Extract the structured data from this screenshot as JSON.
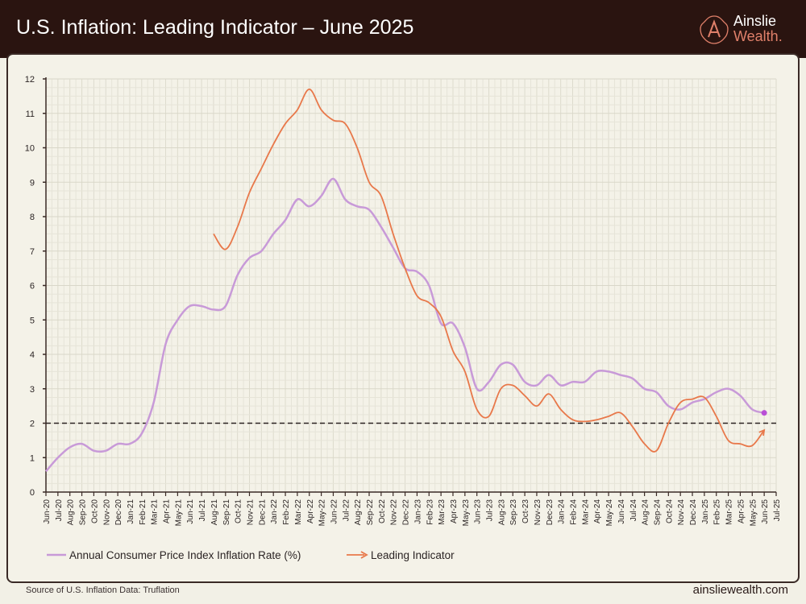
{
  "header": {
    "title": "U.S. Inflation: Leading Indicator – June 2025"
  },
  "logo": {
    "line1": "Ainslie",
    "line2": "Wealth."
  },
  "footer": {
    "source": "Source of U.S. Inflation Data: Truflation",
    "site": "ainsliewealth.com"
  },
  "colors": {
    "header_bg": "#2a1410",
    "cpi": "#c89ad8",
    "leading": "#e8784a",
    "target_line": "#2b2222",
    "endpoint_dot": "#b94fd6"
  },
  "chart_data": {
    "type": "line",
    "title": "",
    "xlabel": "",
    "ylabel": "",
    "ylim": [
      0,
      12
    ],
    "yticks": [
      0,
      1,
      2,
      3,
      4,
      5,
      6,
      7,
      8,
      9,
      10,
      11,
      12
    ],
    "grid": true,
    "legend": "bottom",
    "reference_line": {
      "y": 2,
      "style": "dashed"
    },
    "categories": [
      "Jun-20",
      "Jul-20",
      "Aug-20",
      "Sep-20",
      "Oct-20",
      "Nov-20",
      "Dec-20",
      "Jan-21",
      "Feb-21",
      "Mar-21",
      "Apr-21",
      "May-21",
      "Jun-21",
      "Jul-21",
      "Aug-21",
      "Sep-21",
      "Oct-21",
      "Nov-21",
      "Dec-21",
      "Jan-22",
      "Feb-22",
      "Mar-22",
      "Apr-22",
      "May-22",
      "Jun-22",
      "Jul-22",
      "Aug-22",
      "Sep-22",
      "Oct-22",
      "Nov-22",
      "Dec-22",
      "Jan-23",
      "Feb-23",
      "Mar-23",
      "Apr-23",
      "May-23",
      "Jun-23",
      "Jul-23",
      "Aug-23",
      "Sep-23",
      "Oct-23",
      "Nov-23",
      "Dec-23",
      "Jan-24",
      "Feb-24",
      "Mar-24",
      "Apr-24",
      "May-24",
      "Jun-24",
      "Jul-24",
      "Aug-24",
      "Sep-24",
      "Oct-24",
      "Nov-24",
      "Dec-24",
      "Jan-25",
      "Feb-25",
      "Mar-25",
      "Apr-25",
      "May-25",
      "Jun-25",
      "Jul-25"
    ],
    "series": [
      {
        "name": "Annual Consumer Price Index Inflation Rate (%)",
        "values": [
          0.6,
          1.0,
          1.3,
          1.4,
          1.2,
          1.2,
          1.4,
          1.4,
          1.7,
          2.6,
          4.3,
          5.0,
          5.4,
          5.4,
          5.3,
          5.4,
          6.3,
          6.8,
          7.0,
          7.5,
          7.9,
          8.5,
          8.3,
          8.6,
          9.1,
          8.5,
          8.3,
          8.2,
          7.7,
          7.1,
          6.5,
          6.4,
          6.0,
          4.9,
          4.9,
          4.2,
          3.0,
          3.2,
          3.7,
          3.7,
          3.2,
          3.1,
          3.4,
          3.1,
          3.2,
          3.2,
          3.5,
          3.5,
          3.4,
          3.3,
          3.0,
          2.9,
          2.5,
          2.4,
          2.6,
          2.7,
          2.9,
          3.0,
          2.8,
          2.4,
          2.3,
          null
        ]
      },
      {
        "name": "Leading Indicator",
        "values": [
          null,
          null,
          null,
          null,
          null,
          null,
          null,
          null,
          null,
          null,
          null,
          null,
          null,
          null,
          7.5,
          7.05,
          7.7,
          8.7,
          9.4,
          10.1,
          10.7,
          11.1,
          11.7,
          11.1,
          10.8,
          10.7,
          10.0,
          9.0,
          8.6,
          7.5,
          6.5,
          5.7,
          5.5,
          5.1,
          4.1,
          3.5,
          2.4,
          2.2,
          3.0,
          3.1,
          2.8,
          2.5,
          2.85,
          2.4,
          2.1,
          2.05,
          2.1,
          2.2,
          2.3,
          1.9,
          1.4,
          1.2,
          2.0,
          2.6,
          2.7,
          2.75,
          2.2,
          1.5,
          1.4,
          1.35,
          1.8,
          null
        ]
      }
    ]
  }
}
